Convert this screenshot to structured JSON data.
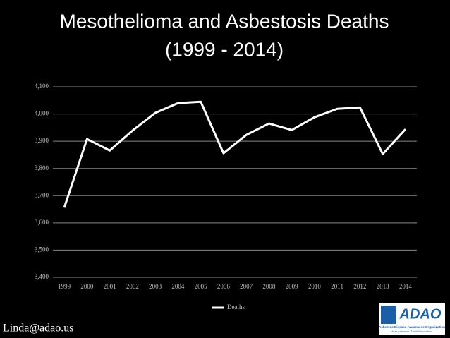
{
  "chart_data": {
    "type": "line",
    "title": "Mesothelioma and Asbestosis Deaths",
    "subtitle": "(1999 - 2014)",
    "categories": [
      "1999",
      "2000",
      "2001",
      "2002",
      "2003",
      "2004",
      "2005",
      "2006",
      "2007",
      "2008",
      "2009",
      "2010",
      "2011",
      "2012",
      "2013",
      "2014"
    ],
    "series": [
      {
        "name": "Deaths",
        "color": "#ffffff",
        "values": [
          3656,
          3908,
          3866,
          3939,
          4004,
          4040,
          4045,
          3856,
          3923,
          3965,
          3941,
          3988,
          4019,
          4024,
          3853,
          3944
        ]
      }
    ],
    "ylim": [
      3400,
      4100
    ],
    "yticks": [
      {
        "value": 3400,
        "label": "3,400"
      },
      {
        "value": 3500,
        "label": "3,500"
      },
      {
        "value": 3600,
        "label": "3,600"
      },
      {
        "value": 3700,
        "label": "3,700"
      },
      {
        "value": 3800,
        "label": "3,800"
      },
      {
        "value": 3900,
        "label": "3,900"
      },
      {
        "value": 4000,
        "label": "4,000"
      },
      {
        "value": 4100,
        "label": "4,100"
      }
    ],
    "grid": true,
    "legend": "bottom"
  },
  "footer": {
    "email": "Linda@adao.us"
  },
  "logo": {
    "name": "ADAO",
    "org": "Asbestos Disease Awareness Organization",
    "tagline": "Hear Asbestos. Think Prevention."
  }
}
